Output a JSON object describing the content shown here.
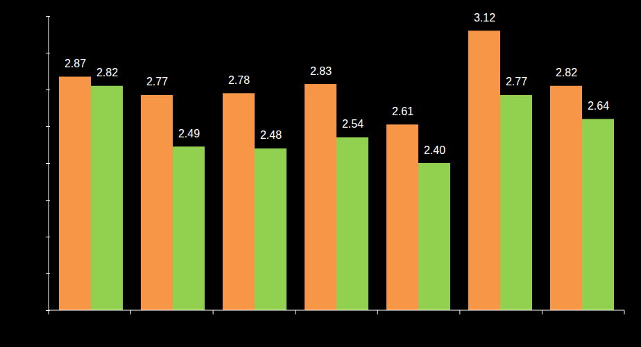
{
  "chart_data": {
    "type": "bar",
    "categories": [
      null,
      null,
      null,
      null,
      null,
      null,
      null
    ],
    "series": [
      {
        "color": "#F79646",
        "values": [
          2.87,
          2.77,
          2.78,
          2.83,
          2.61,
          3.12,
          2.82
        ],
        "value_labels": [
          "2.87",
          "2.77",
          "2.78",
          "2.83",
          "2.61",
          "3.12",
          "2.82"
        ]
      },
      {
        "color": "#92D050",
        "values": [
          2.82,
          2.49,
          2.48,
          2.54,
          2.4,
          2.77,
          2.64
        ],
        "value_labels": [
          "2.82",
          "2.49",
          "2.48",
          "2.54",
          "2.40",
          "2.77",
          "2.64"
        ]
      }
    ],
    "ylim": [
      1.6,
      3.2
    ],
    "yticks": [
      1.6,
      1.8,
      2.0,
      2.2,
      2.4,
      2.6,
      2.8,
      3.0,
      3.2
    ],
    "grid": false,
    "data_labels": true,
    "tick_labels": false
  }
}
